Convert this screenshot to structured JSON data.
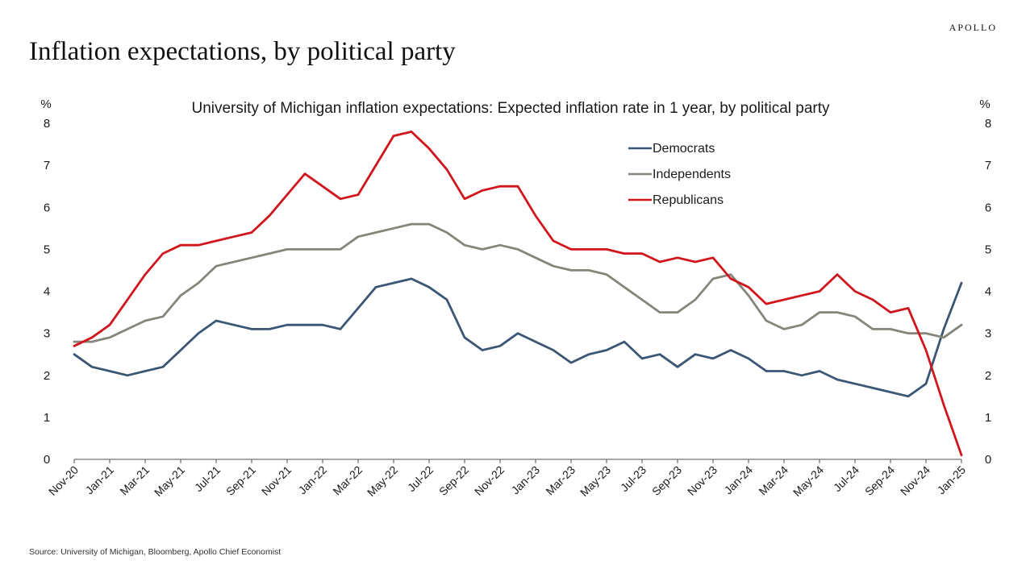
{
  "brand": "APOLLO",
  "page_title": "Inflation expectations, by political party",
  "source": "Source: University of Michigan, Bloomberg, Apollo Chief Economist",
  "chart_data": {
    "type": "line",
    "title": "University of Michigan inflation expectations: Expected inflation rate in 1 year, by political party",
    "y_unit_left": "%",
    "y_unit_right": "%",
    "ylim": [
      0,
      8
    ],
    "y_ticks": [
      0,
      1,
      2,
      3,
      4,
      5,
      6,
      7,
      8
    ],
    "x_tick_labels": [
      "Nov-20",
      "Jan-21",
      "Mar-21",
      "May-21",
      "Jul-21",
      "Sep-21",
      "Nov-21",
      "Jan-22",
      "Mar-22",
      "May-22",
      "Jul-22",
      "Sep-22",
      "Nov-22",
      "Jan-23",
      "Mar-23",
      "May-23",
      "Jul-23",
      "Sep-23",
      "Nov-23",
      "Jan-24",
      "Mar-24",
      "May-24",
      "Jul-24",
      "Sep-24",
      "Nov-24",
      "Jan-25"
    ],
    "grid": false,
    "legend_position": "top-center-right",
    "x": [
      "Nov-20",
      "Dec-20",
      "Jan-21",
      "Feb-21",
      "Mar-21",
      "Apr-21",
      "May-21",
      "Jun-21",
      "Jul-21",
      "Aug-21",
      "Sep-21",
      "Oct-21",
      "Nov-21",
      "Dec-21",
      "Jan-22",
      "Feb-22",
      "Mar-22",
      "Apr-22",
      "May-22",
      "Jun-22",
      "Jul-22",
      "Aug-22",
      "Sep-22",
      "Oct-22",
      "Nov-22",
      "Dec-22",
      "Jan-23",
      "Feb-23",
      "Mar-23",
      "Apr-23",
      "May-23",
      "Jun-23",
      "Jul-23",
      "Aug-23",
      "Sep-23",
      "Oct-23",
      "Nov-23",
      "Dec-23",
      "Jan-24",
      "Feb-24",
      "Mar-24",
      "Apr-24",
      "May-24",
      "Jun-24",
      "Jul-24",
      "Aug-24",
      "Sep-24",
      "Oct-24",
      "Nov-24",
      "Dec-24",
      "Jan-25"
    ],
    "series": [
      {
        "name": "Democrats",
        "color": "#3b5675",
        "values": [
          2.5,
          2.2,
          2.1,
          2.0,
          2.1,
          2.2,
          2.6,
          3.0,
          3.3,
          3.2,
          3.1,
          3.1,
          3.2,
          3.2,
          3.2,
          3.1,
          3.6,
          4.1,
          4.2,
          4.3,
          4.1,
          3.8,
          2.9,
          2.6,
          2.7,
          3.0,
          2.8,
          2.6,
          2.3,
          2.5,
          2.6,
          2.8,
          2.4,
          2.5,
          2.2,
          2.5,
          2.4,
          2.6,
          2.4,
          2.1,
          2.1,
          2.0,
          2.1,
          1.9,
          1.8,
          1.7,
          1.6,
          1.5,
          1.8,
          3.1,
          4.2
        ]
      },
      {
        "name": "Independents",
        "color": "#85857a",
        "values": [
          2.8,
          2.8,
          2.9,
          3.1,
          3.3,
          3.4,
          3.9,
          4.2,
          4.6,
          4.7,
          4.8,
          4.9,
          5.0,
          5.0,
          5.0,
          5.0,
          5.3,
          5.4,
          5.5,
          5.6,
          5.6,
          5.4,
          5.1,
          5.0,
          5.1,
          5.0,
          4.8,
          4.6,
          4.5,
          4.5,
          4.4,
          4.1,
          3.8,
          3.5,
          3.5,
          3.8,
          4.3,
          4.4,
          3.9,
          3.3,
          3.1,
          3.2,
          3.5,
          3.5,
          3.4,
          3.1,
          3.1,
          3.0,
          3.0,
          2.9,
          3.2
        ]
      },
      {
        "name": "Republicans",
        "color": "#d0161c",
        "values": [
          2.7,
          2.9,
          3.2,
          3.8,
          4.4,
          4.9,
          5.1,
          5.1,
          5.2,
          5.3,
          5.4,
          5.8,
          6.3,
          6.8,
          6.5,
          6.2,
          6.3,
          7.0,
          7.7,
          7.8,
          7.4,
          6.9,
          6.2,
          6.4,
          6.5,
          6.5,
          5.8,
          5.2,
          5.0,
          5.0,
          5.0,
          4.9,
          4.9,
          4.7,
          4.8,
          4.7,
          4.8,
          4.3,
          4.1,
          3.7,
          3.8,
          3.9,
          4.0,
          4.4,
          4.0,
          3.8,
          3.5,
          3.6,
          2.6,
          1.3,
          0.1
        ]
      }
    ]
  }
}
